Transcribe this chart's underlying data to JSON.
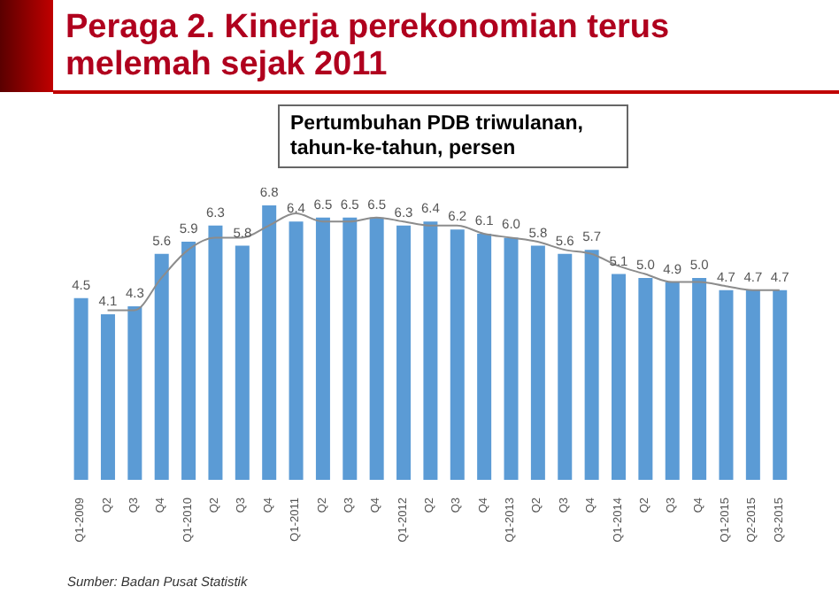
{
  "chart_data": {
    "type": "bar",
    "title": "Peraga 2. Kinerja perekonomian terus melemah sejak 2011",
    "subtitle": "Pertumbuhan PDB triwulanan, tahun-ke-tahun, persen",
    "categories": [
      "Q1-2009",
      "Q2",
      "Q3",
      "Q4",
      "Q1-2010",
      "Q2",
      "Q3",
      "Q4",
      "Q1-2011",
      "Q2",
      "Q3",
      "Q4",
      "Q1-2012",
      "Q2",
      "Q3",
      "Q4",
      "Q1-2013",
      "Q2",
      "Q3",
      "Q4",
      "Q1-2014",
      "Q2",
      "Q3",
      "Q4",
      "Q1-2015",
      "Q2-2015",
      "Q3-2015"
    ],
    "series": [
      {
        "color": "#5b9bd5",
        "values": [
          4.5,
          4.1,
          4.3,
          5.6,
          5.9,
          6.3,
          5.8,
          6.8,
          6.4,
          6.5,
          6.5,
          6.5,
          6.3,
          6.4,
          6.2,
          6.1,
          6.0,
          5.8,
          5.6,
          5.7,
          5.1,
          5.0,
          4.9,
          5.0,
          4.7,
          4.7,
          4.7
        ],
        "value_labels": [
          "4.5",
          "4.1",
          "4.3",
          "5.6",
          "5.9",
          "6.3",
          "5.8",
          "6.8",
          "6.4",
          "6.5",
          "6.5",
          "6.5",
          "6.3",
          "6.4",
          "6.2",
          "6.1",
          "6.0",
          "5.8",
          "5.6",
          "5.7",
          "5.1",
          "5.0",
          "4.9",
          "5.0",
          "4.7",
          "4.7",
          "4.7"
        ]
      },
      {
        "type": "line",
        "color": "#8c8c8c",
        "values": [
          null,
          4.2,
          4.2,
          5.0,
          5.7,
          6.0,
          6.0,
          6.3,
          6.6,
          6.4,
          6.4,
          6.5,
          6.4,
          6.3,
          6.3,
          6.1,
          6.0,
          5.9,
          5.7,
          5.6,
          5.3,
          5.1,
          4.9,
          4.9,
          4.8,
          4.7,
          4.7
        ]
      }
    ],
    "annotations": [
      "Sumber: Badan Pusat Statistik"
    ]
  }
}
